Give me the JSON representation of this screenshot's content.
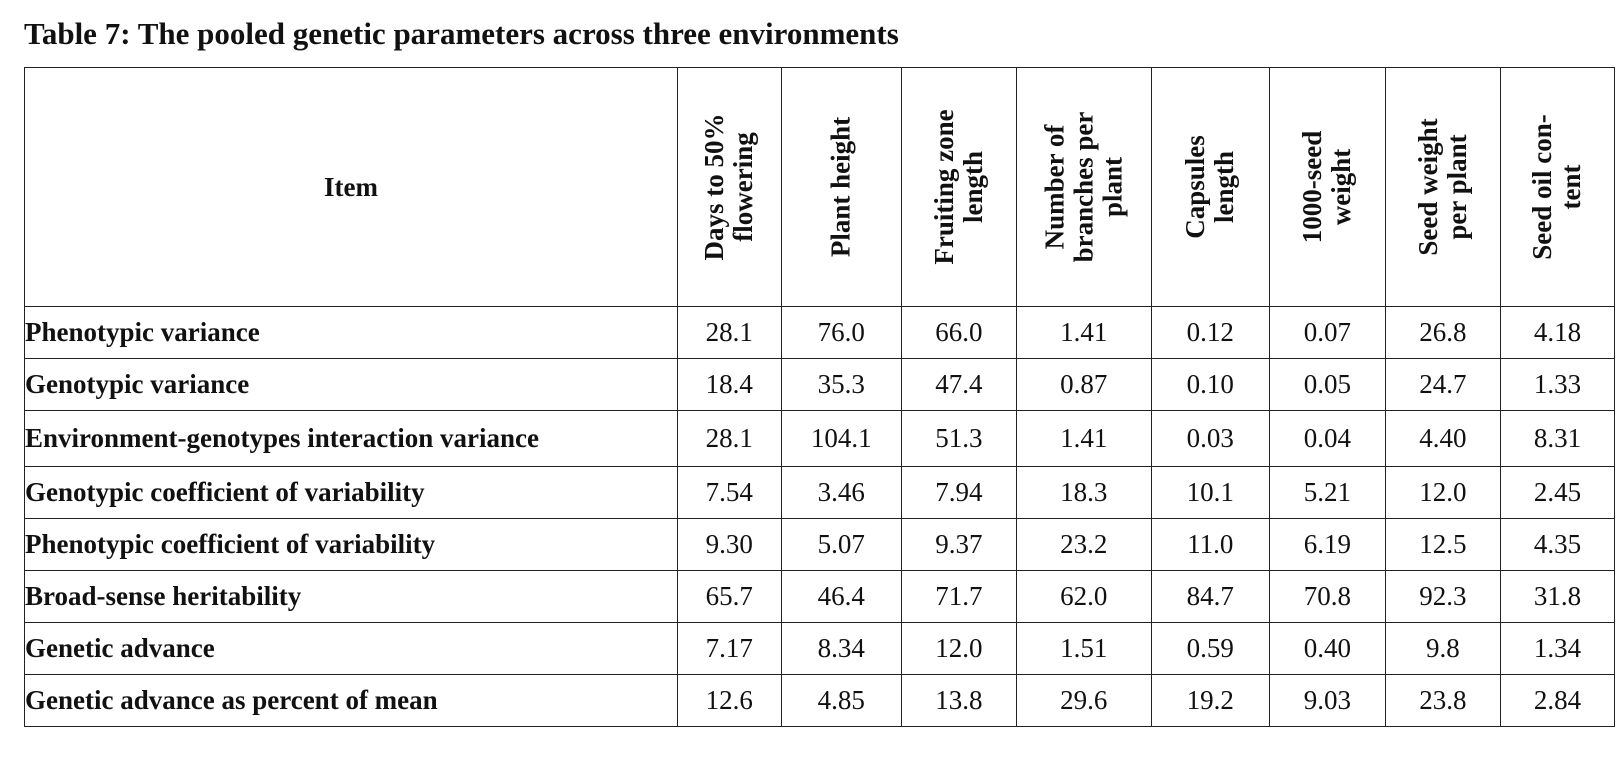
{
  "caption": "Table 7: The pooled genetic parameters across three environments",
  "table": {
    "item_header": "Item",
    "columns": [
      "Days to 50% flowering",
      "Plant height",
      "Fruiting zone length",
      "Number of branches per plant",
      "Capsules length",
      "1000-seed weight",
      "Seed weight per plant",
      "Seed oil con- tent"
    ],
    "rows": [
      {
        "label": "Phenotypic variance",
        "values": [
          "28.1",
          "76.0",
          "66.0",
          "1.41",
          "0.12",
          "0.07",
          "26.8",
          "4.18"
        ]
      },
      {
        "label": "Genotypic variance",
        "values": [
          "18.4",
          "35.3",
          "47.4",
          "0.87",
          "0.10",
          "0.05",
          "24.7",
          "1.33"
        ]
      },
      {
        "label": "Environment-genotypes interaction variance",
        "values": [
          "28.1",
          "104.1",
          "51.3",
          "1.41",
          "0.03",
          "0.04",
          "4.40",
          "8.31"
        ]
      },
      {
        "label": "Genotypic coefficient of variability",
        "values": [
          "7.54",
          "3.46",
          "7.94",
          "18.3",
          "10.1",
          "5.21",
          "12.0",
          "2.45"
        ]
      },
      {
        "label": "Phenotypic coefficient of variability",
        "values": [
          "9.30",
          "5.07",
          "9.37",
          "23.2",
          "11.0",
          "6.19",
          "12.5",
          "4.35"
        ]
      },
      {
        "label": "Broad-sense heritability",
        "values": [
          "65.7",
          "46.4",
          "71.7",
          "62.0",
          "84.7",
          "70.8",
          "92.3",
          "31.8"
        ]
      },
      {
        "label": "Genetic advance",
        "values": [
          "7.17",
          "8.34",
          "12.0",
          "1.51",
          "0.59",
          "0.40",
          "9.8",
          "1.34"
        ]
      },
      {
        "label": "Genetic advance as percent of mean",
        "values": [
          "12.6",
          "4.85",
          "13.8",
          "29.6",
          "19.2",
          "9.03",
          "23.8",
          "2.84"
        ]
      }
    ]
  }
}
